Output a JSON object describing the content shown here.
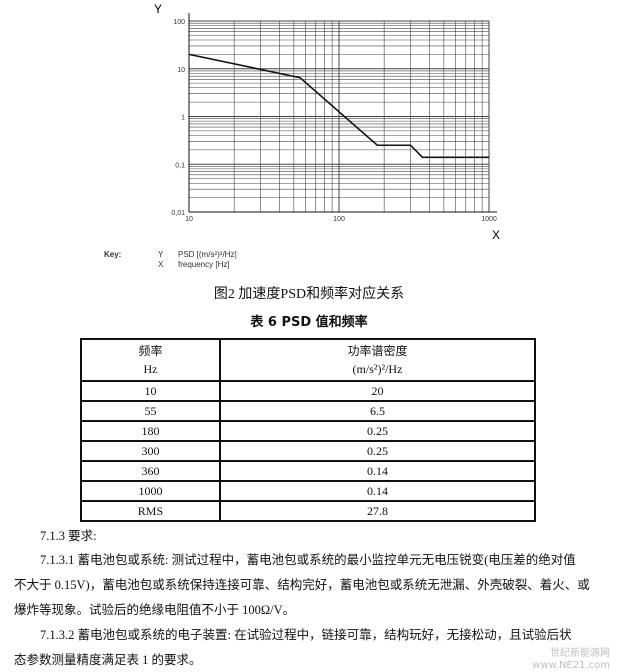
{
  "chart_data": {
    "type": "line",
    "x_scale": "log",
    "y_scale": "log",
    "xlim": [
      10,
      1000
    ],
    "ylim": [
      0.01,
      100
    ],
    "xticks": [
      "10",
      "100",
      "1000"
    ],
    "yticks": [
      "0,01",
      "0,1",
      "1",
      "10",
      "100"
    ],
    "xlabel": "X",
    "ylabel": "Y",
    "grid": true,
    "series": [
      {
        "x": [
          10,
          55,
          180,
          300,
          360,
          1000
        ],
        "y": [
          20,
          6.5,
          0.25,
          0.25,
          0.14,
          0.14
        ]
      }
    ],
    "line_color": "#111111"
  },
  "key": {
    "label": "Key:",
    "y_letter": "Y",
    "y_desc": "PSD [(m/s²)²/Hz]",
    "x_letter": "X",
    "x_desc": "frequency [Hz]"
  },
  "figure_caption": "图2   加速度PSD和频率对应关系",
  "table_caption": "表 6   PSD 值和频率",
  "table": {
    "headers": [
      [
        "频率",
        "Hz"
      ],
      [
        "功率谱密度",
        "(m/s²)²/Hz"
      ]
    ],
    "rows": [
      [
        "10",
        "20"
      ],
      [
        "55",
        "6.5"
      ],
      [
        "180",
        "0.25"
      ],
      [
        "300",
        "0.25"
      ],
      [
        "360",
        "0.14"
      ],
      [
        "1000",
        "0.14"
      ],
      [
        "RMS",
        "27.8"
      ]
    ]
  },
  "text": {
    "heading": "7.1.3 要求:",
    "p1_l1": "7.1.3.1   蓄电池包或系统: 测试过程中，蓄电池包或系统的最小监控单元无电压锐变(电压差的绝对值",
    "p1_l2": "不大于 0.15V)，蓄电池包或系统保持连接可靠、结构完好，蓄电池包或系统无泄漏、外壳破裂、着火、或",
    "p1_l3": "爆炸等现象。试验后的绝缘电阻值不小于 100Ω/V。",
    "p2_l1": "7.1.3.2 蓄电池包或系统的电子装置: 在试验过程中，链接可靠，结构玩好，无接松动，且试验后状",
    "p2_l2": "态参数测量精度满足表 1 的要求。"
  },
  "watermark": {
    "line1": "世纪新能源网",
    "line2": "www.NE21.com"
  }
}
